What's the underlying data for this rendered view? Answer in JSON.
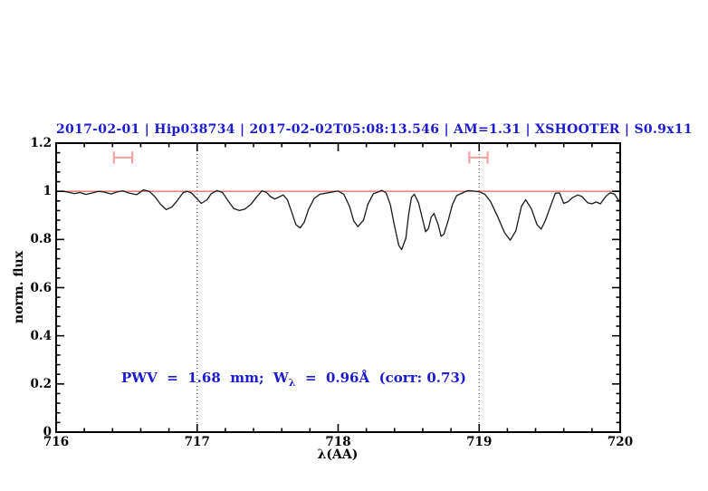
{
  "chart_data": {
    "type": "line",
    "title": "2017-02-01 | Hip038734 | 2017-02-02T05:08:13.546 | AM=1.31 | XSHOOTER | S0.9x11",
    "title_color": "#1b1bd0",
    "xlabel": "λ(AA)",
    "ylabel": "norm. flux",
    "xlim": [
      716,
      720
    ],
    "ylim": [
      0,
      1.2
    ],
    "x_major_ticks": [
      716,
      717,
      718,
      719,
      720
    ],
    "x_tick_labels": [
      "716",
      "717",
      "718",
      "719",
      "720"
    ],
    "x_minor_step": 0.2,
    "y_major_ticks": [
      0,
      0.2,
      0.4,
      0.6,
      0.8,
      1,
      1.2
    ],
    "y_tick_labels": [
      "0",
      "0.2",
      "0.4",
      "0.6",
      "0.8",
      "1",
      "1.2"
    ],
    "y_minor_step": 0.04,
    "axis_color": "#000000",
    "grid": "off",
    "dotted_vertical_lines_x": [
      717,
      719
    ],
    "dotted_line_color": "#333333",
    "continuum": {
      "y": 1.0,
      "color": "#ee6f6f"
    },
    "error_bars": {
      "color": "#f5a2a2",
      "y": 1.14,
      "cap_half_height": 0.025,
      "ranges_x": [
        [
          716.41,
          716.54
        ],
        [
          718.93,
          719.06
        ]
      ]
    },
    "annotation": {
      "prefix": "PWV  =  1.68  mm;  W",
      "sub": "λ",
      "suffix": "  =  0.96Å  (corr: 0.73)",
      "color": "#1b1bd0"
    },
    "series": [
      {
        "name": "spectrum",
        "color": "#1a1a1a",
        "points": [
          [
            716.0,
            1.0
          ],
          [
            716.05,
            1.0
          ],
          [
            716.09,
            0.996
          ],
          [
            716.13,
            0.99
          ],
          [
            716.17,
            0.995
          ],
          [
            716.21,
            0.987
          ],
          [
            716.25,
            0.992
          ],
          [
            716.3,
            1.0
          ],
          [
            716.34,
            0.997
          ],
          [
            716.39,
            0.989
          ],
          [
            716.43,
            0.997
          ],
          [
            716.47,
            1.002
          ],
          [
            716.52,
            0.992
          ],
          [
            716.57,
            0.986
          ],
          [
            716.62,
            1.006
          ],
          [
            716.66,
            1.0
          ],
          [
            716.7,
            0.978
          ],
          [
            716.74,
            0.946
          ],
          [
            716.78,
            0.924
          ],
          [
            716.82,
            0.934
          ],
          [
            716.86,
            0.962
          ],
          [
            716.9,
            0.994
          ],
          [
            716.93,
            1.0
          ],
          [
            716.96,
            0.993
          ],
          [
            717.0,
            0.968
          ],
          [
            717.03,
            0.95
          ],
          [
            717.07,
            0.965
          ],
          [
            717.1,
            0.99
          ],
          [
            717.14,
            1.003
          ],
          [
            717.18,
            0.995
          ],
          [
            717.22,
            0.96
          ],
          [
            717.26,
            0.928
          ],
          [
            717.3,
            0.92
          ],
          [
            717.34,
            0.926
          ],
          [
            717.38,
            0.945
          ],
          [
            717.42,
            0.975
          ],
          [
            717.46,
            1.002
          ],
          [
            717.49,
            0.996
          ],
          [
            717.52,
            0.978
          ],
          [
            717.55,
            0.968
          ],
          [
            717.58,
            0.976
          ],
          [
            717.61,
            0.985
          ],
          [
            717.64,
            0.965
          ],
          [
            717.67,
            0.915
          ],
          [
            717.7,
            0.862
          ],
          [
            717.73,
            0.848
          ],
          [
            717.76,
            0.872
          ],
          [
            717.79,
            0.925
          ],
          [
            717.83,
            0.97
          ],
          [
            717.87,
            0.988
          ],
          [
            717.91,
            0.992
          ],
          [
            717.95,
            0.996
          ],
          [
            718.0,
            1.001
          ],
          [
            718.04,
            0.988
          ],
          [
            718.08,
            0.938
          ],
          [
            718.11,
            0.878
          ],
          [
            718.14,
            0.853
          ],
          [
            718.18,
            0.88
          ],
          [
            718.21,
            0.945
          ],
          [
            718.25,
            0.99
          ],
          [
            718.28,
            0.996
          ],
          [
            718.31,
            1.004
          ],
          [
            718.34,
            0.993
          ],
          [
            718.37,
            0.945
          ],
          [
            718.4,
            0.855
          ],
          [
            718.43,
            0.775
          ],
          [
            718.45,
            0.758
          ],
          [
            718.48,
            0.805
          ],
          [
            718.5,
            0.905
          ],
          [
            718.52,
            0.975
          ],
          [
            718.54,
            0.988
          ],
          [
            718.57,
            0.952
          ],
          [
            718.6,
            0.88
          ],
          [
            718.62,
            0.832
          ],
          [
            718.64,
            0.845
          ],
          [
            718.66,
            0.893
          ],
          [
            718.68,
            0.908
          ],
          [
            718.71,
            0.86
          ],
          [
            718.73,
            0.813
          ],
          [
            718.75,
            0.822
          ],
          [
            718.78,
            0.878
          ],
          [
            718.81,
            0.945
          ],
          [
            718.84,
            0.982
          ],
          [
            718.88,
            0.993
          ],
          [
            718.92,
            1.003
          ],
          [
            718.96,
            1.001
          ],
          [
            719.0,
            0.998
          ],
          [
            719.04,
            0.988
          ],
          [
            719.08,
            0.958
          ],
          [
            719.13,
            0.896
          ],
          [
            719.18,
            0.828
          ],
          [
            719.22,
            0.797
          ],
          [
            719.26,
            0.835
          ],
          [
            719.3,
            0.938
          ],
          [
            719.33,
            0.965
          ],
          [
            719.37,
            0.928
          ],
          [
            719.41,
            0.862
          ],
          [
            719.44,
            0.843
          ],
          [
            719.47,
            0.88
          ],
          [
            719.51,
            0.945
          ],
          [
            719.54,
            0.992
          ],
          [
            719.57,
            0.993
          ],
          [
            719.6,
            0.95
          ],
          [
            719.63,
            0.957
          ],
          [
            719.66,
            0.973
          ],
          [
            719.7,
            0.985
          ],
          [
            719.73,
            0.978
          ],
          [
            719.77,
            0.952
          ],
          [
            719.8,
            0.948
          ],
          [
            719.83,
            0.956
          ],
          [
            719.86,
            0.948
          ],
          [
            719.9,
            0.98
          ],
          [
            719.93,
            0.994
          ],
          [
            719.96,
            0.988
          ],
          [
            720.0,
            0.952
          ]
        ]
      }
    ]
  }
}
